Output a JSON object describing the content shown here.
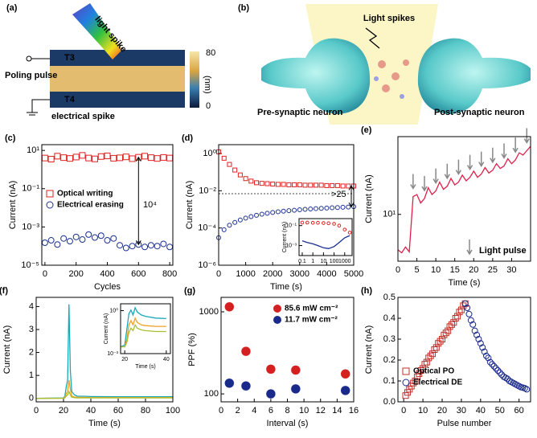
{
  "panel_a": {
    "label": "(a)",
    "arrow_text": "light spike",
    "top_electrode": "T3",
    "bottom_electrode": "T4",
    "input_text": "Poling pulse",
    "output_text": "electrical spike",
    "colorbar_ticks": [
      80,
      0
    ],
    "colorbar_unit": "(nm)"
  },
  "panel_b": {
    "label": "(b)",
    "stimulus_text": "Light spikes",
    "left_text": "Pre-synaptic neuron",
    "right_text": "Post-synaptic neuron"
  },
  "chart_data": [
    {
      "type": "scatter",
      "label": "(c)",
      "xlabel": "Cycles",
      "ylabel": "Current (nA)",
      "ylog": true,
      "xlim": [
        -20,
        820
      ],
      "xticks": [
        0,
        200,
        400,
        600,
        800
      ],
      "ylim": [
        1e-05,
        20
      ],
      "yticks": [
        {
          "value": 10,
          "label": "10¹"
        },
        {
          "value": 0.1,
          "label": "10⁻¹"
        },
        {
          "value": 0.001,
          "label": "10⁻³"
        },
        {
          "value": 1e-05,
          "label": "10⁻⁵"
        }
      ],
      "legend": "center left",
      "annotations": [
        {
          "text": "10⁴"
        }
      ],
      "series": [
        {
          "name": "Optical writing",
          "color": "#e02020",
          "marker": "square",
          "x": [
            0,
            40,
            80,
            120,
            160,
            200,
            240,
            280,
            320,
            360,
            400,
            440,
            480,
            520,
            560,
            600,
            640,
            680,
            720,
            760,
            800
          ],
          "values": [
            4,
            3.5,
            5,
            4.2,
            3.8,
            4.5,
            5.5,
            4,
            3.6,
            4.8,
            5.2,
            3.9,
            4.1,
            4.6,
            3.7,
            4.4,
            5,
            4.2,
            3.8,
            4.3,
            4
          ]
        },
        {
          "name": "Electrical erasing",
          "color": "#1a2f8f",
          "marker": "circle",
          "x": [
            0,
            40,
            80,
            120,
            160,
            200,
            240,
            280,
            320,
            360,
            400,
            440,
            480,
            520,
            560,
            600,
            640,
            680,
            720,
            760,
            800
          ],
          "values": [
            0.00015,
            0.0002,
            0.00012,
            0.00025,
            0.00018,
            0.0003,
            0.00022,
            0.0004,
            0.00028,
            0.00035,
            0.0002,
            0.00025,
            0.00011,
            8e-05,
            0.0001,
            0.00012,
            9e-05,
            0.00011,
            0.0001,
            0.00013,
            9e-05
          ]
        }
      ]
    },
    {
      "type": "scatter",
      "label": "(d)",
      "xlabel": "Time (s)",
      "ylabel": "Current (nA)",
      "ylog": true,
      "xlim": [
        0,
        5000
      ],
      "xticks": [
        0,
        1000,
        2000,
        3000,
        4000,
        5000
      ],
      "ylim": [
        1e-06,
        3
      ],
      "yticks": [
        {
          "value": 1,
          "label": "10⁰"
        },
        {
          "value": 0.01,
          "label": "10⁻²"
        },
        {
          "value": 0.0001,
          "label": "10⁻⁴"
        },
        {
          "value": 1e-06,
          "label": "10⁻⁶"
        }
      ],
      "hline": 0.007,
      "annotations": [
        {
          "text": ">25"
        }
      ],
      "series": [
        {
          "color": "#e02020",
          "marker": "square",
          "x": [
            0,
            200,
            400,
            600,
            800,
            1000,
            1200,
            1400,
            1600,
            1800,
            2000,
            2200,
            2400,
            2600,
            2800,
            3000,
            3200,
            3400,
            3600,
            3800,
            4000,
            4200,
            4400,
            4600,
            4800,
            5000
          ],
          "values": [
            1.22,
            0.56,
            0.26,
            0.13,
            0.071,
            0.045,
            0.033,
            0.027,
            0.025,
            0.024,
            0.023,
            0.022,
            0.022,
            0.021,
            0.021,
            0.021,
            0.02,
            0.02,
            0.02,
            0.02,
            0.019,
            0.019,
            0.019,
            0.018,
            0.018,
            0.018
          ]
        },
        {
          "color": "#1a2f8f",
          "marker": "circle",
          "x": [
            0,
            200,
            400,
            600,
            800,
            1000,
            1200,
            1400,
            1600,
            1800,
            2000,
            2200,
            2400,
            2600,
            2800,
            3000,
            3200,
            3400,
            3600,
            3800,
            4000,
            4200,
            4400,
            4600,
            4800,
            5000
          ],
          "values": [
            3e-05,
            8e-05,
            0.00014,
            0.0002,
            0.00027,
            0.00034,
            0.00041,
            0.00048,
            0.00055,
            0.00062,
            0.00068,
            0.00074,
            0.0008,
            0.00085,
            0.0009,
            0.00095,
            0.001,
            0.00105,
            0.0011,
            0.00114,
            0.00118,
            0.00122,
            0.00126,
            0.0013,
            0.00134,
            0.0014
          ]
        }
      ]
    },
    {
      "type": "scatter",
      "ylabel": "Current (nA)",
      "xlog": true,
      "ylog": true,
      "xlim": [
        0.05,
        5000
      ],
      "xticks": [
        0.1,
        1,
        10,
        100,
        1000
      ],
      "ylim": [
        0.0001,
        0.5
      ],
      "yticks": [
        {
          "value": 0.1,
          "label": "10⁻¹"
        },
        {
          "value": 0.001,
          "label": "10⁻³"
        }
      ],
      "series": [
        {
          "color": "#e02020",
          "marker": "circle",
          "x": [
            0.1,
            0.3,
            1,
            3,
            10,
            30,
            100,
            300,
            1000,
            3000
          ],
          "values": [
            0.2,
            0.2,
            0.19,
            0.19,
            0.18,
            0.17,
            0.15,
            0.1,
            0.04,
            0.02
          ]
        },
        {
          "color": "#1a2f8f",
          "line": true,
          "x": [
            0.1,
            0.3,
            1,
            3,
            10,
            30,
            100,
            300,
            1000,
            3000
          ],
          "values": [
            0.003,
            0.002,
            0.0015,
            0.001,
            0.0006,
            0.0005,
            0.0008,
            0.002,
            0.006,
            0.01
          ]
        }
      ]
    },
    {
      "type": "line",
      "label": "(e)",
      "xlabel": "Time (s)",
      "ylabel": "Current (nA)",
      "ylog": true,
      "xlim": [
        0,
        35
      ],
      "xticks": [
        0,
        5,
        10,
        15,
        20,
        25,
        30
      ],
      "ylim": [
        2.5,
        100
      ],
      "yticks": [
        {
          "value": 10,
          "label": "10¹"
        }
      ],
      "pulses": [
        4,
        7,
        10,
        13,
        16,
        19,
        22,
        25,
        28,
        31,
        34
      ],
      "annotations": [
        {
          "text": "Light pulse"
        }
      ],
      "series": [
        {
          "color": "#e0204a",
          "line": true,
          "x": [
            0,
            1,
            2,
            3,
            4,
            5,
            6,
            7,
            8,
            9,
            10,
            11,
            12,
            13,
            14,
            15,
            16,
            17,
            18,
            19,
            20,
            21,
            22,
            23,
            24,
            25,
            26,
            27,
            28,
            29,
            30,
            31,
            32,
            33,
            34,
            35
          ],
          "values": [
            3.5,
            3.2,
            3.8,
            3.3,
            17,
            18,
            14,
            16,
            22,
            18,
            20,
            26,
            21,
            23,
            29,
            24,
            26,
            32,
            27,
            30,
            36,
            30,
            33,
            40,
            34,
            37,
            45,
            39,
            42,
            52,
            45,
            50,
            62,
            58,
            66,
            75
          ]
        }
      ]
    },
    {
      "type": "line",
      "label": "(f)",
      "xlabel": "Time (s)",
      "ylabel": "Current (nA)",
      "xlim": [
        0,
        100
      ],
      "xticks": [
        0,
        20,
        40,
        60,
        80,
        100
      ],
      "ylim": [
        -0.15,
        4.4
      ],
      "yticks": [
        0,
        1,
        2,
        3,
        4
      ],
      "series": [
        {
          "color": "#17a9b8",
          "line": true,
          "x": [
            0,
            20,
            21,
            22,
            23,
            24,
            25,
            26,
            28,
            30,
            40,
            60,
            80,
            100
          ],
          "values": [
            0,
            0.02,
            0.1,
            0.5,
            0.8,
            4.1,
            1.2,
            0.3,
            0.15,
            0.1,
            0.08,
            0.07,
            0.07,
            0.07
          ]
        },
        {
          "color": "#f0a020",
          "line": true,
          "x": [
            0,
            20,
            21,
            22,
            23,
            24,
            25,
            26,
            28,
            30,
            40,
            60,
            80,
            100
          ],
          "values": [
            0,
            0.01,
            0.05,
            0.2,
            0.3,
            0.8,
            0.4,
            0.1,
            0.06,
            0.05,
            0.04,
            0.04,
            0.04,
            0.04
          ]
        },
        {
          "color": "#a8c030",
          "line": true,
          "x": [
            0,
            20,
            21,
            22,
            23,
            24,
            25,
            26,
            28,
            30,
            40,
            60,
            80,
            100
          ],
          "values": [
            0,
            0.005,
            0.02,
            0.1,
            0.15,
            0.3,
            0.15,
            0.05,
            0.03,
            0.02,
            0.02,
            0.02,
            0.02,
            0.02
          ]
        }
      ]
    },
    {
      "type": "line",
      "xlabel": "Time (s)",
      "ylabel": "Current (nA)",
      "ylog": true,
      "xlim": [
        18,
        42
      ],
      "xticks": [
        20,
        40
      ],
      "ylim": [
        0.001,
        3
      ],
      "yticks": [
        {
          "value": 1,
          "label": "10⁰"
        },
        {
          "value": 0.001,
          "label": "10⁻³"
        }
      ],
      "series": [
        {
          "color": "#17a9b8",
          "line": true,
          "x": [
            18,
            20,
            21,
            22,
            23,
            24,
            25,
            26,
            28,
            30,
            35,
            40
          ],
          "values": [
            0.003,
            0.004,
            0.05,
            0.6,
            1.1,
            0.5,
            1.6,
            0.8,
            0.5,
            0.4,
            0.3,
            0.28
          ]
        },
        {
          "color": "#f0a020",
          "line": true,
          "x": [
            18,
            20,
            21,
            22,
            23,
            24,
            25,
            26,
            28,
            30,
            35,
            40
          ],
          "values": [
            0.003,
            0.003,
            0.01,
            0.1,
            0.2,
            0.1,
            0.3,
            0.15,
            0.1,
            0.09,
            0.08,
            0.08
          ]
        },
        {
          "color": "#a8c030",
          "line": true,
          "x": [
            18,
            20,
            21,
            22,
            23,
            24,
            25,
            26,
            28,
            30,
            35,
            40
          ],
          "values": [
            0.003,
            0.003,
            0.006,
            0.03,
            0.06,
            0.04,
            0.1,
            0.06,
            0.045,
            0.04,
            0.035,
            0.035
          ]
        }
      ]
    },
    {
      "type": "scatter",
      "label": "(g)",
      "xlabel": "Interval (s)",
      "ylabel": "PPF (%)",
      "ylog": true,
      "xlim": [
        0,
        16
      ],
      "xticks": [
        0,
        2,
        4,
        6,
        8,
        10,
        12,
        14,
        16
      ],
      "ylim": [
        80,
        1500
      ],
      "yticks": [
        100,
        1000
      ],
      "legend": "upper right",
      "series": [
        {
          "name": "85.6 mW cm⁻²",
          "color": "#d42020",
          "marker": "ball",
          "x": [
            1,
            3,
            6,
            9,
            15
          ],
          "values": [
            1150,
            330,
            200,
            195,
            175
          ]
        },
        {
          "name": "11.7 mW cm⁻²",
          "color": "#1a2a8a",
          "marker": "ball",
          "x": [
            1,
            3,
            6,
            9,
            15
          ],
          "values": [
            135,
            125,
            100,
            115,
            110
          ]
        }
      ]
    },
    {
      "type": "scatter",
      "label": "(h)",
      "xlabel": "Pulse number",
      "ylabel": "Current (nA)",
      "xlim": [
        -3,
        66
      ],
      "xticks": [
        0,
        10,
        20,
        30,
        40,
        50,
        60
      ],
      "ylim": [
        0,
        0.5
      ],
      "yticks": [
        {
          "value": 0,
          "label": "0.0"
        },
        0.1,
        0.2,
        0.3,
        0.4,
        0.5
      ],
      "legend": "lower left",
      "series": [
        {
          "name": "Optical PO",
          "color": "#c0302a",
          "marker": "square",
          "x": [
            1,
            2,
            3,
            4,
            5,
            6,
            7,
            8,
            9,
            10,
            11,
            12,
            13,
            14,
            15,
            16,
            17,
            18,
            19,
            20,
            21,
            22,
            23,
            24,
            25,
            26,
            27,
            28,
            29,
            30,
            31,
            32
          ],
          "values": [
            0.03,
            0.045,
            0.06,
            0.075,
            0.09,
            0.1,
            0.12,
            0.135,
            0.15,
            0.16,
            0.18,
            0.19,
            0.21,
            0.22,
            0.23,
            0.25,
            0.26,
            0.28,
            0.29,
            0.3,
            0.32,
            0.33,
            0.34,
            0.36,
            0.37,
            0.38,
            0.4,
            0.41,
            0.43,
            0.44,
            0.46,
            0.47
          ]
        },
        {
          "name": "Electrical DE",
          "color": "#1a2a8a",
          "marker": "circle",
          "x": [
            32,
            33,
            34,
            35,
            36,
            37,
            38,
            39,
            40,
            41,
            42,
            43,
            44,
            45,
            46,
            47,
            48,
            49,
            50,
            51,
            52,
            53,
            54,
            55,
            56,
            57,
            58,
            59,
            60,
            61,
            62,
            63,
            64
          ],
          "values": [
            0.47,
            0.45,
            0.42,
            0.39,
            0.37,
            0.34,
            0.32,
            0.3,
            0.28,
            0.26,
            0.24,
            0.22,
            0.21,
            0.19,
            0.18,
            0.17,
            0.16,
            0.15,
            0.14,
            0.13,
            0.12,
            0.115,
            0.11,
            0.1,
            0.095,
            0.09,
            0.085,
            0.08,
            0.075,
            0.07,
            0.068,
            0.065,
            0.06
          ]
        }
      ]
    }
  ]
}
